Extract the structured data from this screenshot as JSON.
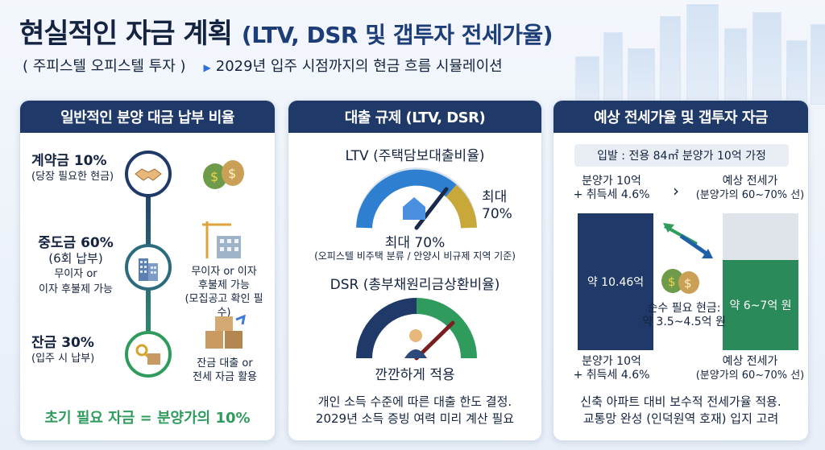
{
  "header": {
    "title": "현실적인 자금 계획",
    "title_sub": "(LTV, DSR 및 갭투자 전세가율)",
    "subtitle_left": "( 주피스텔 오피스텔 투자 )",
    "subtitle_right": "2029년 입주 시점까지의 현금 흐름 시뮬레이션"
  },
  "panel1": {
    "title": "일반적인 분양 대금 납부 비율",
    "stages": [
      {
        "title": "계약금 10%",
        "sub": "(당장 필요한 현금)"
      },
      {
        "title": "중도금 60%",
        "line2": "(6회 납부)",
        "line3": "무이자 or",
        "line4": "이자 후불제 가능"
      },
      {
        "title": "잔금 30%",
        "sub": "(입주 시 납부)"
      }
    ],
    "note_mid": [
      "무이자 or 이자",
      "후불제 가능",
      "(모집공고 확인 필수)"
    ],
    "note_bottom": [
      "잔금 대출 or",
      "전세 자금 활용"
    ],
    "footer": "초기 필요 자금 = 분양가의 10%"
  },
  "panel2": {
    "title": "대출 규제 (LTV, DSR)",
    "ltv_label": "LTV (주택담보대출비율)",
    "ltv_max_label": "최대",
    "ltv_max_value": "70%",
    "ltv_value_label": "최대 70%",
    "ltv_note": "(오피스텔 비주택 분류 / 안양시 비규제 지역 기준)",
    "dsr_label": "DSR (총부채원리금상환비율)",
    "dsr_note": "깐깐하게 적용",
    "footer": [
      "개인 소득 수준에 따른 대출 한도 결정.",
      "2029년 소득 증빙 여력 미리 계산 필요"
    ]
  },
  "panel3": {
    "title": "예상 전세가율 및 갭투자 자금",
    "assumption": "입발 : 전용 84㎡ 분양가 10억 가정",
    "top_left": [
      "분양가 10억",
      "+ 취득세 4.6%"
    ],
    "top_right": [
      "예상 전세가",
      "(분양가의 60~70% 선)"
    ],
    "bar_left_label": "약 10.46억",
    "bar_right_label": "약 6~7억 원",
    "net_cash": [
      "순수 필요 현금:",
      "약 3.5~4.5억 원"
    ],
    "bottom_left": [
      "분양가 10억",
      "+ 취득세 4.6%"
    ],
    "bottom_right": [
      "예상 전세가",
      "(분양가의 60~70% 선)"
    ],
    "footer": [
      "신축 아파트 대비 보수적 전세가율 적용.",
      "교통망 완성 (인덕원역 호재) 입지 고려"
    ]
  }
}
